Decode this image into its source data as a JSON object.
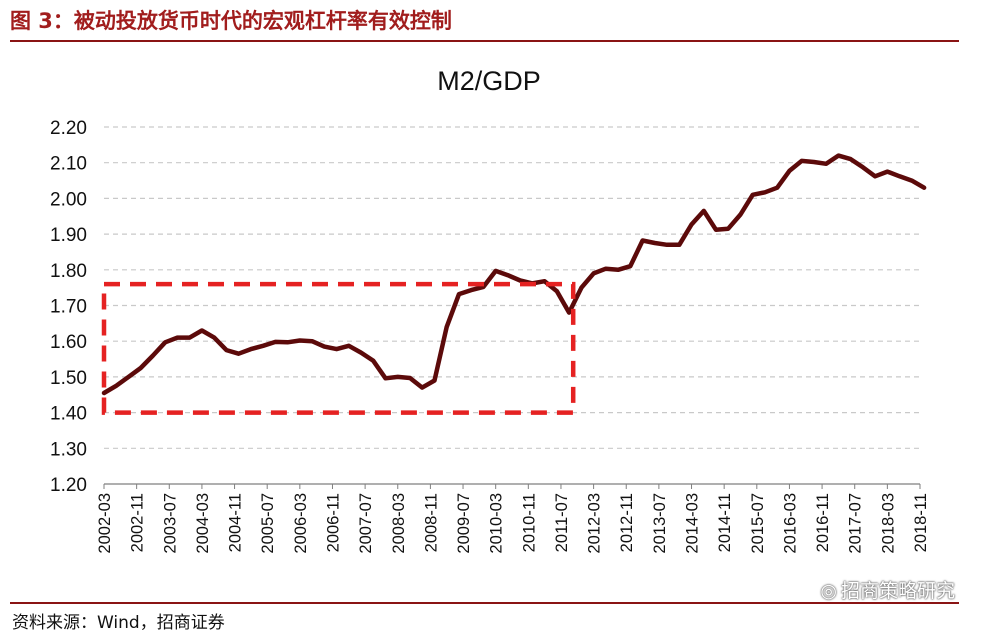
{
  "figure": {
    "title": "图 3：被动投放货币时代的宏观杠杆率有效控制",
    "source": "资料来源：Wind，招商证券",
    "watermark": "招商策略研究",
    "watermark_icon": "wechat-icon",
    "accent_color": "#8a1414"
  },
  "chart_data": {
    "type": "line",
    "title": "M2/GDP",
    "xlabel": "",
    "ylabel": "",
    "ylim": [
      1.2,
      2.2
    ],
    "yticks": [
      "2.20",
      "2.10",
      "2.00",
      "1.90",
      "1.80",
      "1.70",
      "1.60",
      "1.50",
      "1.40",
      "1.30",
      "1.20"
    ],
    "xtick_labels": [
      "2002-03",
      "2002-11",
      "2003-07",
      "2004-03",
      "2004-11",
      "2005-07",
      "2006-03",
      "2006-11",
      "2007-07",
      "2008-03",
      "2008-11",
      "2009-07",
      "2010-03",
      "2010-11",
      "2011-07",
      "2012-03",
      "2012-11",
      "2013-07",
      "2014-03",
      "2014-11",
      "2015-07",
      "2016-03",
      "2016-11",
      "2017-07",
      "2018-03",
      "2018-11"
    ],
    "grid": true,
    "legend": "none",
    "line_color": "#5c0a0a",
    "series": [
      {
        "x": [
          "2002-03",
          "2002-06",
          "2002-09",
          "2002-12",
          "2003-03",
          "2003-06",
          "2003-09",
          "2003-12",
          "2004-03",
          "2004-06",
          "2004-09",
          "2004-12",
          "2005-03",
          "2005-06",
          "2005-09",
          "2005-12",
          "2006-03",
          "2006-06",
          "2006-09",
          "2006-12",
          "2007-03",
          "2007-06",
          "2007-09",
          "2007-12",
          "2008-03",
          "2008-06",
          "2008-09",
          "2008-12",
          "2009-03",
          "2009-06",
          "2009-09",
          "2009-12",
          "2010-03",
          "2010-06",
          "2010-09",
          "2010-12",
          "2011-03",
          "2011-06",
          "2011-09",
          "2011-12",
          "2012-03",
          "2012-06",
          "2012-09",
          "2012-12",
          "2013-03",
          "2013-06",
          "2013-09",
          "2013-12",
          "2014-03",
          "2014-06",
          "2014-09",
          "2014-12",
          "2015-03",
          "2015-06",
          "2015-09",
          "2015-12",
          "2016-03",
          "2016-06",
          "2016-09",
          "2016-12",
          "2017-03",
          "2017-06",
          "2017-09",
          "2017-12",
          "2018-03",
          "2018-06",
          "2018-09",
          "2018-12"
        ],
        "values": [
          1.455,
          1.475,
          1.5,
          1.525,
          1.56,
          1.597,
          1.61,
          1.61,
          1.63,
          1.61,
          1.575,
          1.565,
          1.578,
          1.587,
          1.598,
          1.597,
          1.602,
          1.6,
          1.585,
          1.578,
          1.587,
          1.568,
          1.545,
          1.496,
          1.5,
          1.497,
          1.47,
          1.49,
          1.64,
          1.732,
          1.743,
          1.752,
          1.797,
          1.785,
          1.77,
          1.762,
          1.768,
          1.74,
          1.68,
          1.75,
          1.79,
          1.803,
          1.8,
          1.81,
          1.882,
          1.875,
          1.87,
          1.87,
          1.927,
          1.965,
          1.912,
          1.915,
          1.955,
          2.01,
          2.017,
          2.03,
          2.077,
          2.105,
          2.102,
          2.097,
          2.12,
          2.11,
          2.087,
          2.062,
          2.075,
          2.062,
          2.05,
          2.03
        ]
      }
    ],
    "annotations": [
      {
        "type": "dashed-rect",
        "x": [
          "2002-03",
          "2011-10"
        ],
        "y": [
          1.4,
          1.76
        ],
        "color": "#e52222"
      }
    ]
  }
}
